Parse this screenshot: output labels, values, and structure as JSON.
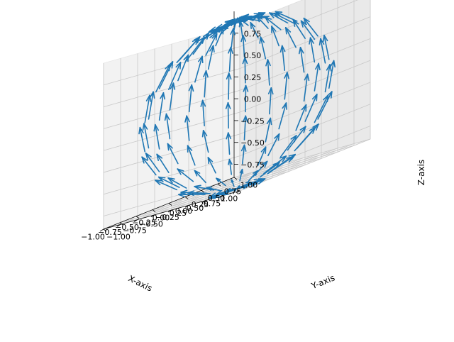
{
  "chart_data": {
    "type": "quiver3d",
    "title": "",
    "xlabel": "X-axis",
    "ylabel": "Y-axis",
    "zlabel": "Z-axis",
    "xlim": [
      -1.0,
      1.0
    ],
    "ylim": [
      -1.0,
      1.0
    ],
    "zlim": [
      -0.9,
      1.0
    ],
    "x_ticks": [
      "−1.00",
      "−0.75",
      "−0.50",
      "−0.25",
      "0.00",
      "0.25",
      "0.50",
      "0.75",
      "1.00"
    ],
    "y_ticks": [
      "−1.00",
      "−0.75",
      "−0.50",
      "−0.25",
      "0.00",
      "0.25",
      "0.50",
      "0.75",
      "1.00"
    ],
    "z_ticks": [
      "−0.75",
      "−0.50",
      "−0.25",
      "0.00",
      "0.25",
      "0.50",
      "0.75"
    ],
    "x_tick_values": [
      -1.0,
      -0.75,
      -0.5,
      -0.25,
      0.0,
      0.25,
      0.5,
      0.75,
      1.0
    ],
    "y_tick_values": [
      -1.0,
      -0.75,
      -0.5,
      -0.25,
      0.0,
      0.25,
      0.5,
      0.75,
      1.0
    ],
    "z_tick_values": [
      -0.75,
      -0.5,
      -0.25,
      0.0,
      0.25,
      0.5,
      0.75
    ],
    "vector_field": {
      "surface": "unit sphere, sampled over inclination 0..π and azimuth 0..2π",
      "arrow_color": "#1f77b4",
      "arrow_length": 0.3
    },
    "grid": true,
    "view": {
      "elev": 20,
      "azim": -35
    }
  }
}
